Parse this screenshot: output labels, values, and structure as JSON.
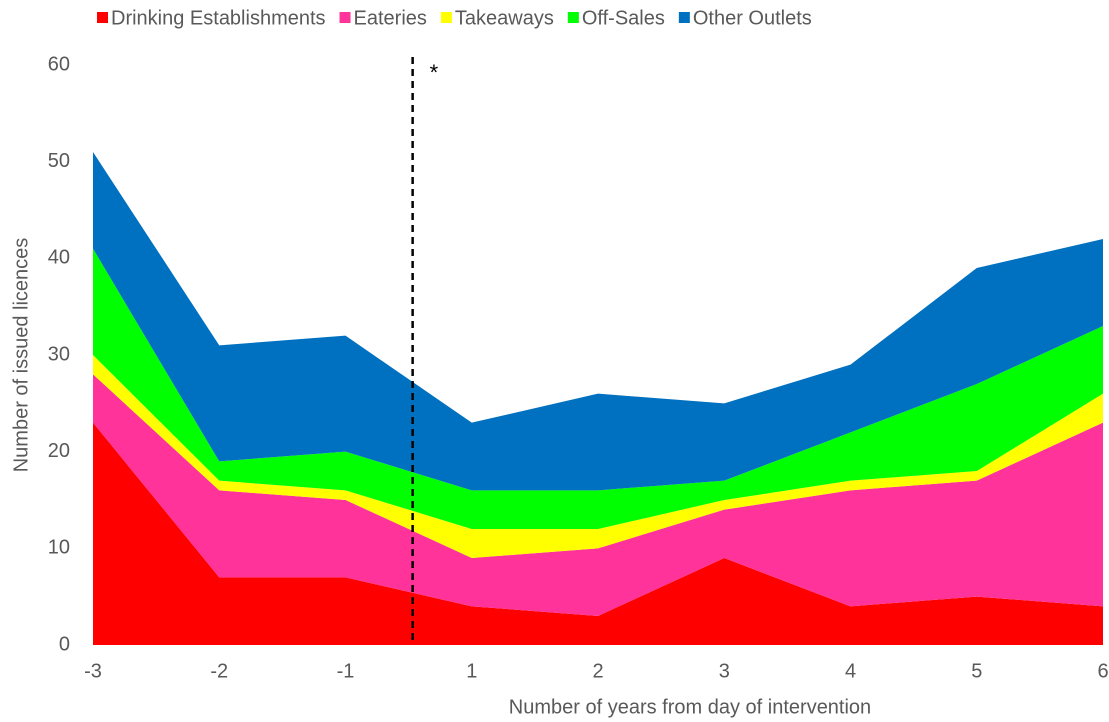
{
  "chart_data": {
    "type": "stacked-area",
    "x_label": "Number of years from  day of intervention",
    "y_label": "Number of issued licences",
    "annotation": "*",
    "categories": [
      "-3",
      "-2",
      "-1",
      "1",
      "2",
      "3",
      "4",
      "5",
      "6"
    ],
    "ylim": [
      0,
      60
    ],
    "yticks": [
      0,
      10,
      20,
      30,
      40,
      50,
      60
    ],
    "legend": "top",
    "series": [
      {
        "name": "Drinking Establishments",
        "color": "#ff0000",
        "values": [
          23,
          7,
          7,
          4,
          3,
          9,
          4,
          5,
          4
        ]
      },
      {
        "name": "Eateries",
        "color": "#ff3399",
        "values": [
          5,
          9,
          8,
          5,
          7,
          5,
          12,
          12,
          19
        ]
      },
      {
        "name": "Takeaways",
        "color": "#ffff00",
        "values": [
          2,
          1,
          1,
          3,
          2,
          1,
          1,
          1,
          3
        ]
      },
      {
        "name": "Off-Sales",
        "color": "#00ff00",
        "values": [
          11,
          2,
          4,
          4,
          4,
          2,
          5,
          9,
          7
        ]
      },
      {
        "name": "Other Outlets",
        "color": "#0070c0",
        "values": [
          10,
          12,
          12,
          7,
          10,
          8,
          7,
          12,
          9
        ]
      }
    ]
  }
}
